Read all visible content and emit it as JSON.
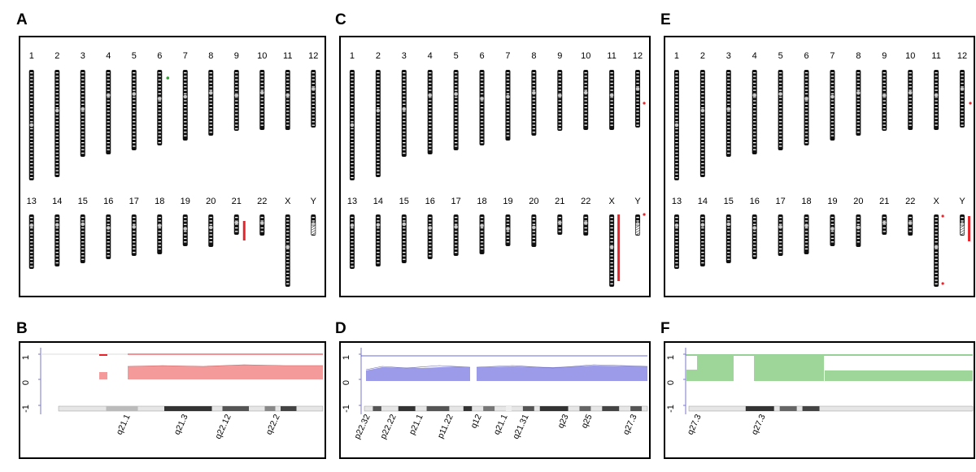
{
  "panels": {
    "a": {
      "letter": "A"
    },
    "b": {
      "letter": "B"
    },
    "c": {
      "letter": "C"
    },
    "d": {
      "letter": "D"
    },
    "e": {
      "letter": "E"
    },
    "f": {
      "letter": "F"
    }
  },
  "chromosomes_row1": [
    "1",
    "2",
    "3",
    "4",
    "5",
    "6",
    "7",
    "8",
    "9",
    "10",
    "11",
    "12"
  ],
  "chromosomes_row2": [
    "13",
    "14",
    "15",
    "16",
    "17",
    "18",
    "19",
    "20",
    "21",
    "22",
    "X",
    "Y"
  ],
  "colors": {
    "red": "#e8232a",
    "green": "#2ca02c",
    "blue": "#3a3ad0",
    "red_fill": "#f59a9a",
    "blue_fill": "#9b9bea",
    "green_fill": "#9ed69a"
  },
  "plot_axis": {
    "ticks": [
      "1",
      "0",
      "-1"
    ]
  },
  "band_labels": {
    "b": [
      "q21.1",
      "q21.3",
      "q22.12",
      "q22.2"
    ],
    "d": [
      "p22.32",
      "p22.22",
      "p21.1",
      "p11.22",
      "q12",
      "q21.1",
      "q21.31",
      "q23",
      "q25",
      "q27.3"
    ],
    "f": [
      "q27.3",
      "q27.3"
    ]
  },
  "highlights": {
    "a": {
      "chromosome": "21",
      "marks": [
        "6-dot",
        "21-bar"
      ]
    },
    "c": {
      "chromosome": "X",
      "marks": [
        "12-dot",
        "Y-dot",
        "X-bar"
      ]
    },
    "e": {
      "chromosome": "Y",
      "marks": [
        "12-dot",
        "X-dot",
        "Y-bar"
      ]
    }
  }
}
